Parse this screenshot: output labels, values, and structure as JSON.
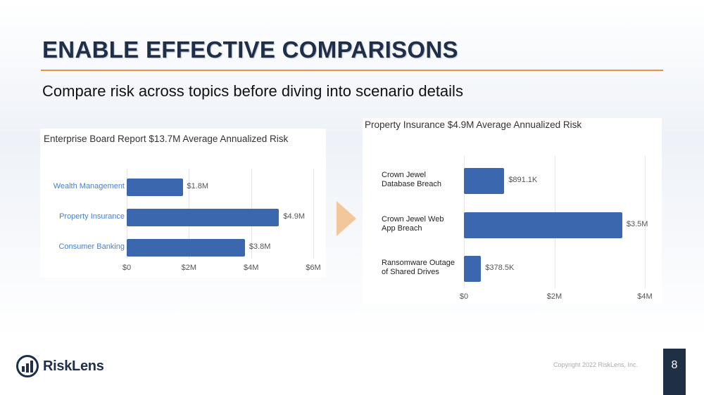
{
  "slide": {
    "title": "ENABLE EFFECTIVE COMPARISONS",
    "subtitle": "Compare risk across topics before diving into scenario details",
    "copyright": "Copyright 2022 RiskLens, Inc.",
    "page_number": "8",
    "logo_text": "RiskLens",
    "accent": "#e8963a",
    "bar_color": "#3b67ae"
  },
  "chart_data": [
    {
      "type": "bar",
      "orientation": "horizontal",
      "title": "Enterprise Board Report $13.7M Average Annualized Risk",
      "categories": [
        "Wealth Management",
        "Property Insurance",
        "Consumer Banking"
      ],
      "values": [
        1.8,
        4.9,
        3.8
      ],
      "value_labels": [
        "$1.8M",
        "$4.9M",
        "$3.8M"
      ],
      "xlim": [
        0,
        6
      ],
      "xticks": [
        0,
        2,
        4,
        6
      ],
      "xtick_labels": [
        "$0",
        "$2M",
        "$4M",
        "$6M"
      ],
      "units": "$M",
      "grid": true
    },
    {
      "type": "bar",
      "orientation": "horizontal",
      "title": "Property Insurance $4.9M Average Annualized Risk",
      "categories": [
        "Crown Jewel Database Breach",
        "Crown Jewel Web App Breach",
        "Ransomware Outage of Shared Drives"
      ],
      "category_lines": [
        [
          "Crown Jewel",
          "Database Breach"
        ],
        [
          "Crown Jewel Web",
          "App Breach"
        ],
        [
          "Ransomware Outage",
          "of Shared Drives"
        ]
      ],
      "values": [
        0.8911,
        3.5,
        0.3785
      ],
      "value_labels": [
        "$891.1K",
        "$3.5M",
        "$378.5K"
      ],
      "xlim": [
        0,
        4
      ],
      "xticks": [
        0,
        2,
        4
      ],
      "xtick_labels": [
        "$0",
        "$2M",
        "$4M"
      ],
      "units": "$M",
      "grid": true
    }
  ]
}
